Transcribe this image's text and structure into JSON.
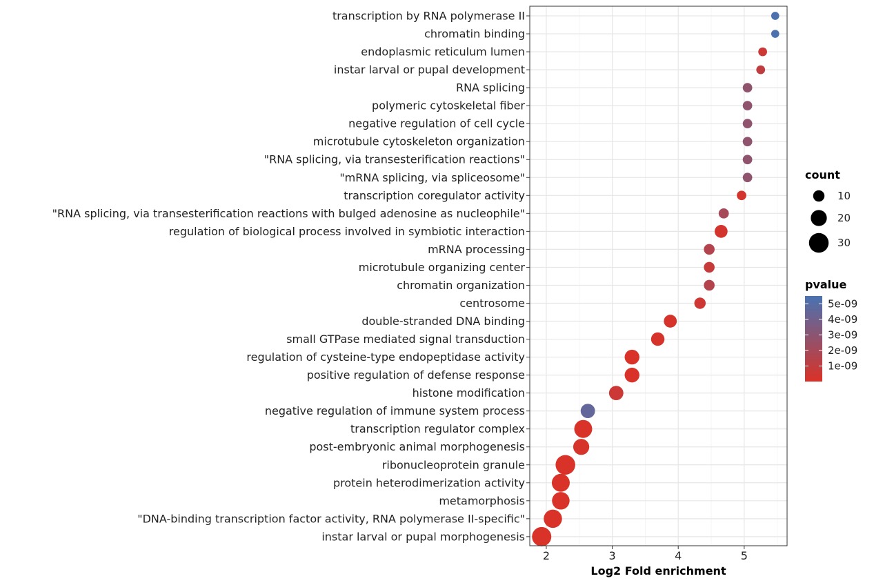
{
  "chart_data": {
    "type": "scatter",
    "subtype": "bubble",
    "xlabel": "Log2 Fold enrichment",
    "ylabel": "",
    "xlim": [
      1.75,
      5.65
    ],
    "xticks": [
      2,
      3,
      4,
      5
    ],
    "grid": true,
    "size_legend": {
      "title": "count",
      "values": [
        10,
        20,
        30
      ]
    },
    "color_legend": {
      "title": "pvalue",
      "ticks": [
        "5e-09",
        "4e-09",
        "3e-09",
        "2e-09",
        "1e-09"
      ],
      "tick_values": [
        5e-09,
        4e-09,
        3e-09,
        2e-09,
        1e-09
      ],
      "range": [
        0,
        5.5e-09
      ],
      "low_color": "#db3126",
      "high_color": "#4873b2"
    },
    "points": [
      {
        "term": "transcription by RNA polymerase II",
        "x": 5.47,
        "count": 5,
        "pvalue": 5.3e-09
      },
      {
        "term": "chromatin binding",
        "x": 5.47,
        "count": 5,
        "pvalue": 5.3e-09
      },
      {
        "term": "endoplasmic reticulum lumen",
        "x": 5.28,
        "count": 6,
        "pvalue": 6e-10
      },
      {
        "term": "instar larval or pupal development",
        "x": 5.25,
        "count": 6,
        "pvalue": 1e-09
      },
      {
        "term": "RNA splicing",
        "x": 5.05,
        "count": 7,
        "pvalue": 2.8e-09
      },
      {
        "term": "polymeric cytoskeletal fiber",
        "x": 5.05,
        "count": 7,
        "pvalue": 2.8e-09
      },
      {
        "term": "negative regulation of cell cycle",
        "x": 5.05,
        "count": 7,
        "pvalue": 2.8e-09
      },
      {
        "term": "microtubule cytoskeleton organization",
        "x": 5.05,
        "count": 7,
        "pvalue": 2.8e-09
      },
      {
        "term": "\"RNA splicing, via transesterification reactions\"",
        "x": 5.05,
        "count": 7,
        "pvalue": 2.8e-09
      },
      {
        "term": "\"mRNA splicing, via spliceosome\"",
        "x": 5.05,
        "count": 7,
        "pvalue": 2.8e-09
      },
      {
        "term": "transcription coregulator activity",
        "x": 4.96,
        "count": 7,
        "pvalue": 3e-10
      },
      {
        "term": "\"RNA splicing, via transesterification reactions with bulged adenosine as nucleophile\"",
        "x": 4.69,
        "count": 8,
        "pvalue": 2e-09
      },
      {
        "term": "regulation of biological process involved in symbiotic interaction",
        "x": 4.65,
        "count": 13,
        "pvalue": 3e-10
      },
      {
        "term": "mRNA processing",
        "x": 4.47,
        "count": 9,
        "pvalue": 1.5e-09
      },
      {
        "term": "microtubule organizing center",
        "x": 4.47,
        "count": 9,
        "pvalue": 8e-10
      },
      {
        "term": "chromatin organization",
        "x": 4.47,
        "count": 9,
        "pvalue": 1.5e-09
      },
      {
        "term": "centrosome",
        "x": 4.33,
        "count": 10,
        "pvalue": 5e-10
      },
      {
        "term": "double-stranded DNA binding",
        "x": 3.88,
        "count": 13,
        "pvalue": 2e-10
      },
      {
        "term": "small GTPase mediated signal transduction",
        "x": 3.69,
        "count": 14,
        "pvalue": 2e-10
      },
      {
        "term": "regulation of cysteine-type endopeptidase activity",
        "x": 3.3,
        "count": 17,
        "pvalue": 1e-10
      },
      {
        "term": "positive regulation of defense response",
        "x": 3.3,
        "count": 17,
        "pvalue": 1e-10
      },
      {
        "term": "histone modification",
        "x": 3.06,
        "count": 16,
        "pvalue": 6e-10
      },
      {
        "term": "negative regulation of immune system process",
        "x": 2.63,
        "count": 16,
        "pvalue": 4.5e-09
      },
      {
        "term": "transcription regulator complex",
        "x": 2.56,
        "count": 25,
        "pvalue": 1e-10
      },
      {
        "term": "post-embryonic animal morphogenesis",
        "x": 2.53,
        "count": 20,
        "pvalue": 2e-10
      },
      {
        "term": "ribonucleoprotein granule",
        "x": 2.29,
        "count": 30,
        "pvalue": 1e-10
      },
      {
        "term": "protein heterodimerization activity",
        "x": 2.22,
        "count": 25,
        "pvalue": 1e-10
      },
      {
        "term": "metamorphosis",
        "x": 2.22,
        "count": 24,
        "pvalue": 1e-10
      },
      {
        "term": "\"DNA-binding transcription factor activity, RNA polymerase II-specific\"",
        "x": 2.1,
        "count": 26,
        "pvalue": 1e-10
      },
      {
        "term": "instar larval or pupal morphogenesis",
        "x": 1.93,
        "count": 29,
        "pvalue": 1e-10
      }
    ]
  }
}
